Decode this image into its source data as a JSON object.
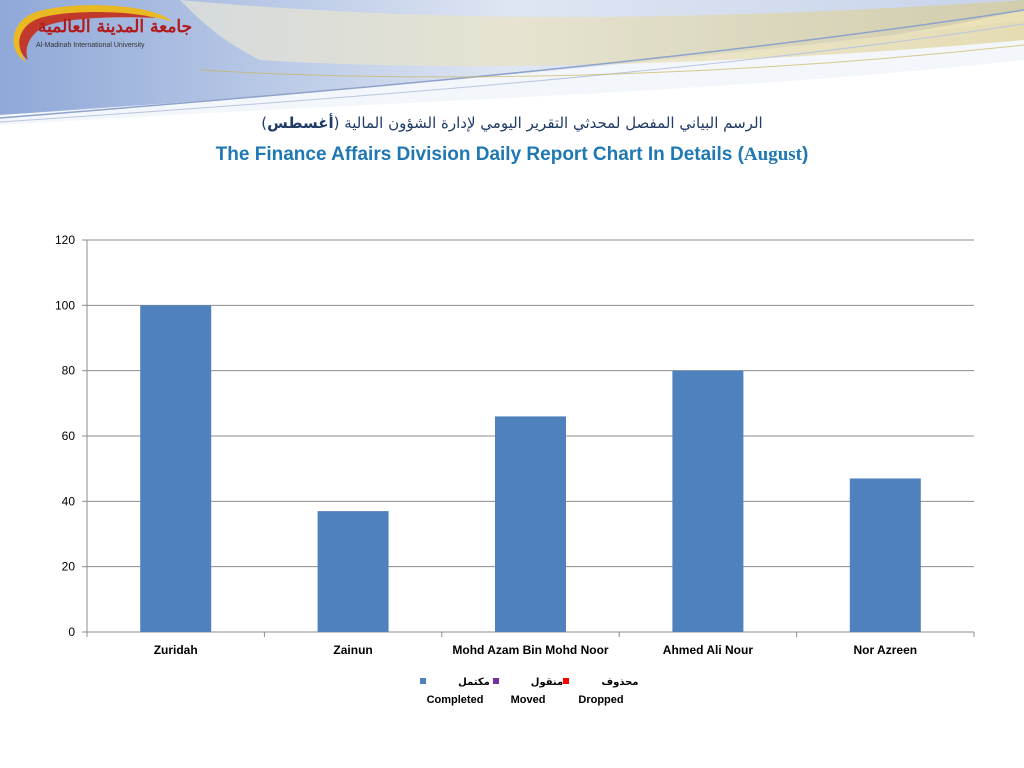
{
  "header": {
    "logo_arabic": "جامعة المدينة العالمية",
    "logo_english": "Al-Madinah International University",
    "title_arabic_main": "الرسم البياني المفصل لمحدثي التقرير اليومي لإدارة الشؤون المالية (",
    "title_arabic_month": "أغسطس",
    "title_arabic_close": ")",
    "title_english_main": "The Finance Affairs Division Daily Report Chart In Details (",
    "title_english_month": "August",
    "title_english_close": ")"
  },
  "colors": {
    "bar": "#4f81bd",
    "completed": "#4f81bd",
    "moved": "#7030a0",
    "dropped": "#ff0000",
    "title_english": "#1f78b4",
    "logo_red": "#b11a1a"
  },
  "legend": [
    {
      "arabic": "مكتمل",
      "english": "Completed",
      "color": "#4f81bd"
    },
    {
      "arabic": "منقول",
      "english": "Moved",
      "color": "#7030a0"
    },
    {
      "arabic": "محذوف",
      "english": "Dropped",
      "color": "#ff0000"
    }
  ],
  "chart_data": {
    "type": "bar",
    "categories": [
      "Zuridah",
      "Zainun",
      "Mohd Azam Bin Mohd Noor",
      "Ahmed Ali Nour",
      "Nor Azreen"
    ],
    "series": [
      {
        "name": "Completed",
        "values": [
          100,
          37,
          66,
          80,
          47
        ]
      }
    ],
    "ylim": [
      0,
      120
    ],
    "yticks": [
      0,
      20,
      40,
      60,
      80,
      100,
      120
    ],
    "grid": true,
    "legend_position": "bottom"
  }
}
